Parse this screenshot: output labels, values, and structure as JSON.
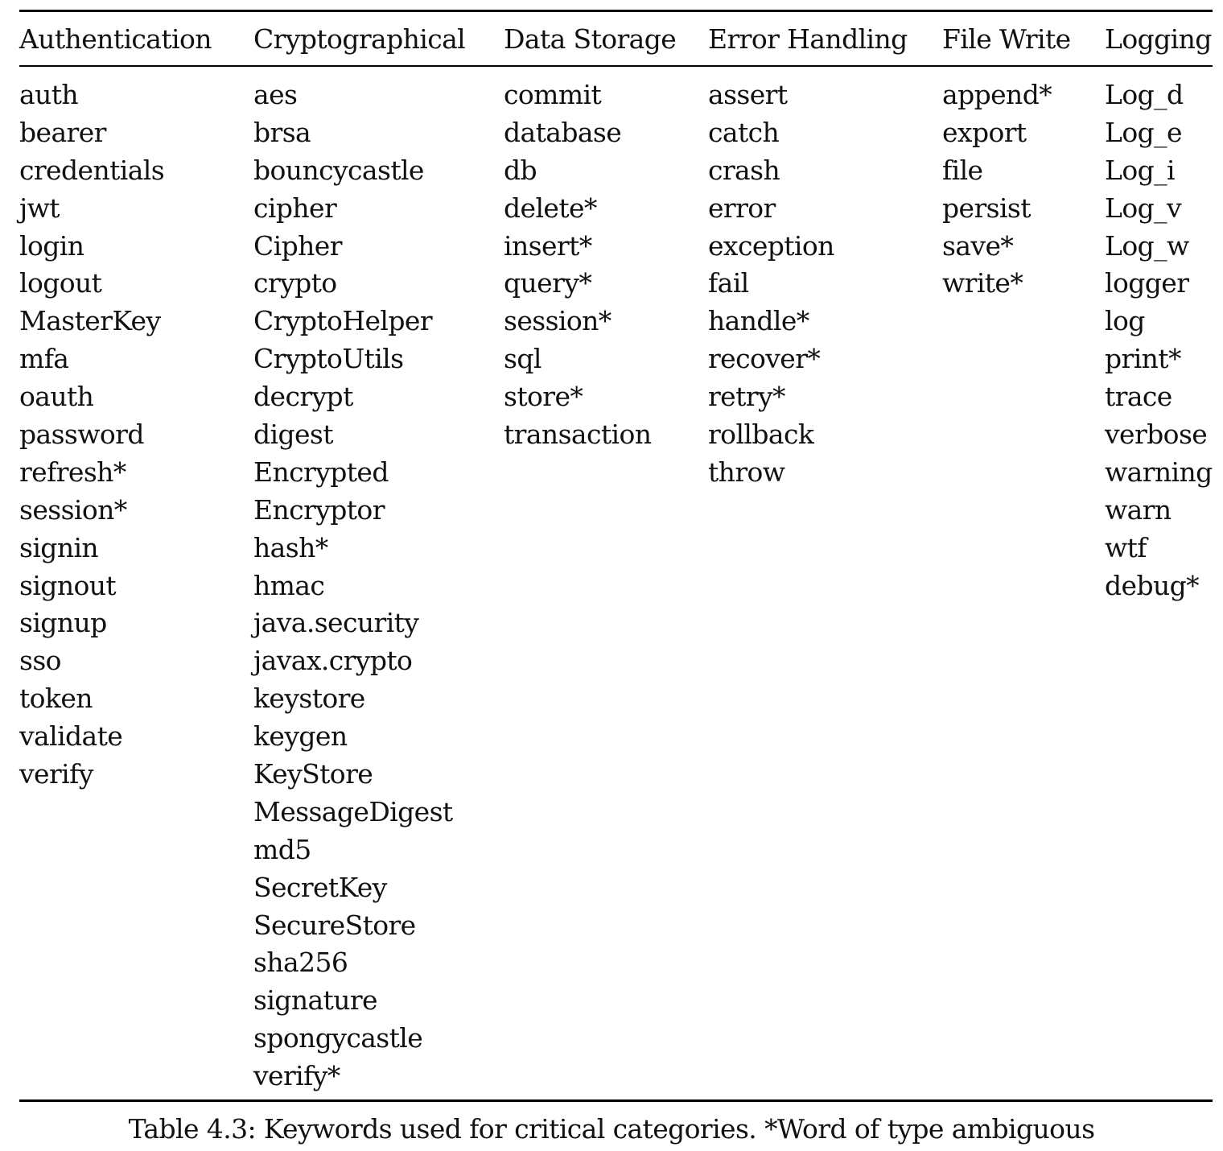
{
  "table": {
    "columns": [
      {
        "header": "Authentication",
        "keywords": [
          "auth",
          "bearer",
          "credentials",
          "jwt",
          "login",
          "logout",
          "MasterKey",
          "mfa",
          "oauth",
          "password",
          "refresh*",
          "session*",
          "signin",
          "signout",
          "signup",
          "sso",
          "token",
          "validate",
          "verify"
        ]
      },
      {
        "header": "Cryptographical",
        "keywords": [
          "aes",
          "brsa",
          "bouncycastle",
          "cipher",
          "Cipher",
          "crypto",
          "CryptoHelper",
          "CryptoUtils",
          "decrypt",
          "digest",
          "Encrypted",
          "Encryptor",
          "hash*",
          "hmac",
          "java.security",
          "javax.crypto",
          "keystore",
          "keygen",
          "KeyStore",
          "MessageDigest",
          "md5",
          "SecretKey",
          "SecureStore",
          "sha256",
          "signature",
          "spongycastle",
          "verify*"
        ]
      },
      {
        "header": "Data Storage",
        "keywords": [
          "commit",
          "database",
          "db",
          "delete*",
          "insert*",
          "query*",
          "session*",
          "sql",
          "store*",
          "transaction"
        ]
      },
      {
        "header": "Error Handling",
        "keywords": [
          "assert",
          "catch",
          "crash",
          "error",
          "exception",
          "fail",
          "handle*",
          "recover*",
          "retry*",
          "rollback",
          "throw"
        ]
      },
      {
        "header": "File Write",
        "keywords": [
          "append*",
          "export",
          "file",
          "persist",
          "save*",
          "write*"
        ]
      },
      {
        "header": "Logging",
        "keywords": [
          "Log_d",
          "Log_e",
          "Log_i",
          "Log_v",
          "Log_w",
          "logger",
          "log",
          "print*",
          "trace",
          "verbose",
          "warning",
          "warn",
          "wtf",
          "debug*"
        ]
      }
    ]
  },
  "caption": "Table 4.3: Keywords used for critical categories. *Word of type ambiguous"
}
